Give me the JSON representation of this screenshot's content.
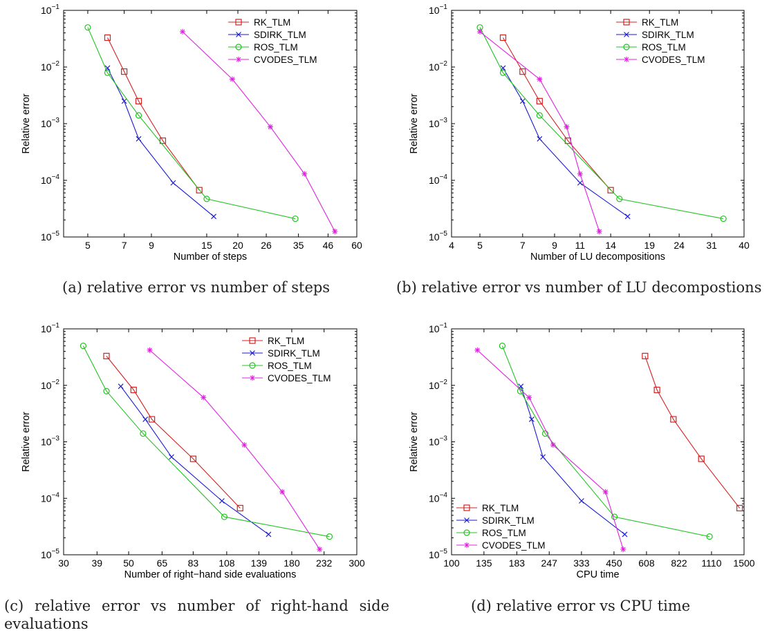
{
  "panels": [
    {
      "caption": "(a) relative error vs number of steps",
      "chart_data": {
        "type": "line",
        "xlabel": "Number of steps",
        "ylabel": "Relative error",
        "xscale": "log",
        "yscale": "log",
        "xlim": [
          4,
          60
        ],
        "ylim": [
          1e-05,
          0.1
        ],
        "xticks": [
          5,
          7,
          9,
          15,
          20,
          26,
          35,
          46,
          60
        ],
        "xtick_labels": [
          "5",
          "7",
          "9",
          "15",
          "20",
          "26",
          "35",
          "46",
          "60"
        ],
        "yticks": [
          1e-05,
          0.0001,
          0.001,
          0.01,
          0.1
        ],
        "legend_position": "top-right",
        "grid": false,
        "series": [
          {
            "name": "RK_TLM",
            "color": "#d42020",
            "marker": "square",
            "x": [
              6,
              7,
              8,
              10,
              14
            ],
            "y": [
              0.033,
              0.0083,
              0.0025,
              0.0005,
              6.7e-05
            ]
          },
          {
            "name": "SDIRK_TLM",
            "color": "#1a1ad0",
            "marker": "x",
            "x": [
              6,
              7,
              8,
              11,
              16
            ],
            "y": [
              0.0096,
              0.0025,
              0.00054,
              9e-05,
              2.3e-05
            ]
          },
          {
            "name": "ROS_TLM",
            "color": "#22c422",
            "marker": "circle",
            "x": [
              5,
              6,
              8,
              15,
              34
            ],
            "y": [
              0.05,
              0.0079,
              0.0014,
              4.7e-05,
              2.1e-05
            ]
          },
          {
            "name": "CVODES_TLM",
            "color": "#e020e0",
            "marker": "star",
            "x": [
              12,
              19,
              27,
              37,
              49
            ],
            "y": [
              0.042,
              0.0061,
              0.00088,
              0.00013,
              1.25e-05
            ]
          }
        ]
      }
    },
    {
      "caption": "(b) relative error vs number of LU decompostions",
      "chart_data": {
        "type": "line",
        "xlabel": "Number of LU decompositions",
        "ylabel": "Relative error",
        "xscale": "log",
        "yscale": "log",
        "xlim": [
          4,
          40
        ],
        "ylim": [
          1e-05,
          0.1
        ],
        "xticks": [
          4,
          5,
          7,
          9,
          11,
          14,
          19,
          24,
          31,
          40
        ],
        "xtick_labels": [
          "4",
          "5",
          "7",
          "9",
          "11",
          "14",
          "19",
          "24",
          "31",
          "40"
        ],
        "yticks": [
          1e-05,
          0.0001,
          0.001,
          0.01,
          0.1
        ],
        "legend_position": "top-right",
        "grid": false,
        "series": [
          {
            "name": "RK_TLM",
            "color": "#d42020",
            "marker": "square",
            "x": [
              6,
              7,
              8,
              10,
              14
            ],
            "y": [
              0.033,
              0.0083,
              0.0025,
              0.0005,
              6.7e-05
            ]
          },
          {
            "name": "SDIRK_TLM",
            "color": "#1a1ad0",
            "marker": "x",
            "x": [
              6,
              7,
              8,
              11,
              16
            ],
            "y": [
              0.0096,
              0.0025,
              0.00054,
              9e-05,
              2.3e-05
            ]
          },
          {
            "name": "ROS_TLM",
            "color": "#22c422",
            "marker": "circle",
            "x": [
              5,
              6,
              8,
              15,
              34
            ],
            "y": [
              0.05,
              0.0079,
              0.0014,
              4.7e-05,
              2.1e-05
            ]
          },
          {
            "name": "CVODES_TLM",
            "color": "#e020e0",
            "marker": "star",
            "x": [
              5,
              8,
              9.9,
              11,
              12.8
            ],
            "y": [
              0.042,
              0.0061,
              0.00088,
              0.00013,
              1.25e-05
            ]
          }
        ]
      }
    },
    {
      "caption": "(c) relative error vs number of right-hand side evaluations",
      "chart_data": {
        "type": "line",
        "xlabel": "Number of right−hand side evaluations",
        "ylabel": "Relative error",
        "xscale": "log",
        "yscale": "log",
        "xlim": [
          30,
          300
        ],
        "ylim": [
          1e-05,
          0.1
        ],
        "xticks": [
          30,
          39,
          50,
          65,
          83,
          108,
          139,
          180,
          232,
          300
        ],
        "xtick_labels": [
          "30",
          "39",
          "50",
          "65",
          "83",
          "108",
          "139",
          "180",
          "232",
          "300"
        ],
        "yticks": [
          1e-05,
          0.0001,
          0.001,
          0.01,
          0.1
        ],
        "legend_position": "top-right",
        "grid": false,
        "series": [
          {
            "name": "RK_TLM",
            "color": "#d42020",
            "marker": "square",
            "x": [
              42,
              52,
              60,
              83,
              120
            ],
            "y": [
              0.033,
              0.0083,
              0.0025,
              0.0005,
              6.7e-05
            ]
          },
          {
            "name": "SDIRK_TLM",
            "color": "#1a1ad0",
            "marker": "x",
            "x": [
              47,
              57,
              70,
              104,
              150
            ],
            "y": [
              0.0096,
              0.0025,
              0.00054,
              9e-05,
              2.3e-05
            ]
          },
          {
            "name": "ROS_TLM",
            "color": "#22c422",
            "marker": "circle",
            "x": [
              35,
              42,
              56,
              106,
              242
            ],
            "y": [
              0.05,
              0.0079,
              0.0014,
              4.7e-05,
              2.1e-05
            ]
          },
          {
            "name": "CVODES_TLM",
            "color": "#e020e0",
            "marker": "star",
            "x": [
              59,
              90,
              124,
              167,
              224
            ],
            "y": [
              0.042,
              0.0061,
              0.00088,
              0.00013,
              1.25e-05
            ]
          }
        ]
      }
    },
    {
      "caption": "(d) relative error vs CPU time",
      "chart_data": {
        "type": "line",
        "xlabel": "CPU time",
        "ylabel": "Relative error",
        "xscale": "log",
        "yscale": "log",
        "xlim": [
          100,
          1500
        ],
        "ylim": [
          1e-05,
          0.1
        ],
        "xticks": [
          100,
          135,
          183,
          247,
          333,
          450,
          608,
          822,
          1110,
          1500
        ],
        "xtick_labels": [
          "100",
          "135",
          "183",
          "247",
          "333",
          "450",
          "608",
          "822",
          "1110",
          "1500"
        ],
        "yticks": [
          1e-05,
          0.0001,
          0.001,
          0.01,
          0.1
        ],
        "legend_position": "bottom-left",
        "grid": false,
        "series": [
          {
            "name": "RK_TLM",
            "color": "#d42020",
            "marker": "square",
            "x": [
              600,
              670,
              780,
              1010,
              1440
            ],
            "y": [
              0.033,
              0.0083,
              0.0025,
              0.0005,
              6.7e-05
            ]
          },
          {
            "name": "SDIRK_TLM",
            "color": "#1a1ad0",
            "marker": "x",
            "x": [
              190,
              210,
              233,
              333,
              497
            ],
            "y": [
              0.0096,
              0.0025,
              0.00054,
              9e-05,
              2.3e-05
            ]
          },
          {
            "name": "ROS_TLM",
            "color": "#22c422",
            "marker": "circle",
            "x": [
              160,
              189,
              238,
              452,
              1090
            ],
            "y": [
              0.05,
              0.0079,
              0.0014,
              4.7e-05,
              2.1e-05
            ]
          },
          {
            "name": "CVODES_TLM",
            "color": "#e020e0",
            "marker": "star",
            "x": [
              127,
              205,
              256,
              416,
              490
            ],
            "y": [
              0.042,
              0.0061,
              0.00088,
              0.00013,
              1.25e-05
            ]
          }
        ]
      }
    }
  ]
}
